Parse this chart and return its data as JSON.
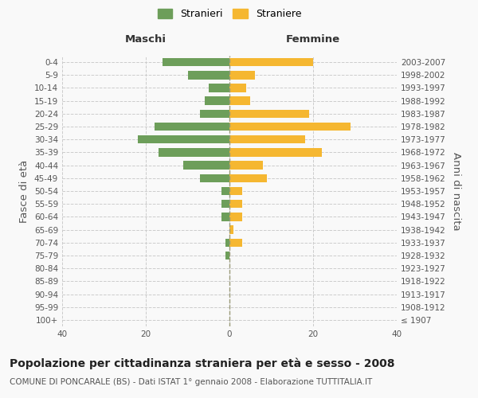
{
  "age_groups": [
    "100+",
    "95-99",
    "90-94",
    "85-89",
    "80-84",
    "75-79",
    "70-74",
    "65-69",
    "60-64",
    "55-59",
    "50-54",
    "45-49",
    "40-44",
    "35-39",
    "30-34",
    "25-29",
    "20-24",
    "15-19",
    "10-14",
    "5-9",
    "0-4"
  ],
  "birth_years": [
    "≤ 1907",
    "1908-1912",
    "1913-1917",
    "1918-1922",
    "1923-1927",
    "1928-1932",
    "1933-1937",
    "1938-1942",
    "1943-1947",
    "1948-1952",
    "1953-1957",
    "1958-1962",
    "1963-1967",
    "1968-1972",
    "1973-1977",
    "1978-1982",
    "1983-1987",
    "1988-1992",
    "1993-1997",
    "1998-2002",
    "2003-2007"
  ],
  "males": [
    0,
    0,
    0,
    0,
    0,
    1,
    1,
    0,
    2,
    2,
    2,
    7,
    11,
    17,
    22,
    18,
    7,
    6,
    5,
    10,
    16
  ],
  "females": [
    0,
    0,
    0,
    0,
    0,
    0,
    3,
    1,
    3,
    3,
    3,
    9,
    8,
    22,
    18,
    29,
    19,
    5,
    4,
    6,
    20
  ],
  "male_color": "#6d9e5a",
  "female_color": "#f5b731",
  "background_color": "#f9f9f9",
  "grid_color": "#cccccc",
  "title": "Popolazione per cittadinanza straniera per età e sesso - 2008",
  "subtitle": "COMUNE DI PONCARALE (BS) - Dati ISTAT 1° gennaio 2008 - Elaborazione TUTTITALIA.IT",
  "xlabel_left": "Maschi",
  "xlabel_right": "Femmine",
  "ylabel_left": "Fasce di età",
  "ylabel_right": "Anni di nascita",
  "legend_male": "Stranieri",
  "legend_female": "Straniere",
  "xlim": 40,
  "title_fontsize": 10,
  "subtitle_fontsize": 7.5,
  "tick_fontsize": 7.5,
  "label_fontsize": 9.5
}
